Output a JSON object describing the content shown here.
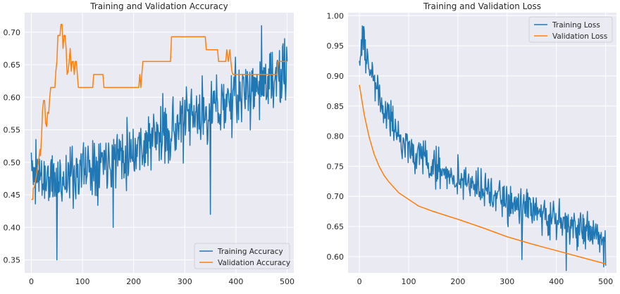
{
  "chart_data": [
    {
      "type": "line",
      "title": "Training and Validation Accuracy",
      "xlabel": "",
      "ylabel": "",
      "xlim": [
        -13,
        513
      ],
      "ylim": [
        0.33,
        0.73
      ],
      "xticks": [
        0,
        100,
        200,
        300,
        400,
        500
      ],
      "yticks": [
        0.35,
        0.4,
        0.45,
        0.5,
        0.55,
        0.6,
        0.65,
        0.7
      ],
      "ytick_labels": [
        "0.35",
        "0.40",
        "0.45",
        "0.50",
        "0.55",
        "0.60",
        "0.65",
        "0.70"
      ],
      "grid": true,
      "legend_position": "lower-right",
      "series": [
        {
          "name": "Training Accuracy",
          "color": "#1f77b4",
          "style": "noisy",
          "seed": 11,
          "trend_x": [
            0,
            50,
            100,
            150,
            200,
            250,
            300,
            350,
            400,
            450,
            500
          ],
          "trend_y": [
            0.48,
            0.47,
            0.49,
            0.51,
            0.52,
            0.54,
            0.56,
            0.58,
            0.6,
            0.62,
            0.63
          ],
          "noise": 0.045,
          "clip": [
            0.41,
            0.71
          ],
          "fixed": [
            [
              0,
              0.515
            ],
            [
              3,
              0.49
            ],
            [
              6,
              0.47
            ],
            [
              9,
              0.535
            ],
            [
              13,
              0.47
            ],
            [
              16,
              0.505
            ],
            [
              50,
              0.35
            ],
            [
              160,
              0.4
            ],
            [
              350,
              0.42
            ],
            [
              450,
              0.71
            ],
            [
              495,
              0.69
            ],
            [
              500,
              0.655
            ]
          ]
        },
        {
          "name": "Validation Accuracy",
          "color": "#ff7f0e",
          "style": "line",
          "x": [
            0,
            3,
            4,
            6,
            10,
            12,
            14,
            17,
            18,
            20,
            22,
            24,
            26,
            28,
            30,
            32,
            34,
            36,
            38,
            40,
            42,
            44,
            46,
            48,
            50,
            52,
            54,
            56,
            58,
            60,
            62,
            64,
            66,
            68,
            70,
            72,
            74,
            76,
            78,
            80,
            82,
            84,
            86,
            88,
            90,
            92,
            94,
            96,
            98,
            100,
            120,
            122,
            140,
            142,
            210,
            212,
            214,
            216,
            218,
            272,
            274,
            340,
            342,
            364,
            366,
            380,
            382,
            385,
            388,
            390,
            392,
            394,
            400,
            480,
            482,
            500
          ],
          "y": [
            0.443,
            0.443,
            0.46,
            0.462,
            0.48,
            0.49,
            0.5,
            0.52,
            0.51,
            0.54,
            0.58,
            0.595,
            0.595,
            0.56,
            0.555,
            0.577,
            0.575,
            0.6,
            0.615,
            0.615,
            0.615,
            0.615,
            0.615,
            0.64,
            0.655,
            0.695,
            0.695,
            0.695,
            0.712,
            0.712,
            0.675,
            0.695,
            0.695,
            0.675,
            0.635,
            0.64,
            0.655,
            0.675,
            0.64,
            0.655,
            0.655,
            0.635,
            0.655,
            0.655,
            0.635,
            0.615,
            0.615,
            0.615,
            0.615,
            0.615,
            0.615,
            0.635,
            0.635,
            0.615,
            0.615,
            0.635,
            0.615,
            0.635,
            0.655,
            0.655,
            0.693,
            0.693,
            0.673,
            0.673,
            0.655,
            0.655,
            0.673,
            0.655,
            0.673,
            0.655,
            0.64,
            0.635,
            0.635,
            0.635,
            0.655,
            0.655
          ]
        }
      ]
    },
    {
      "type": "line",
      "title": "Training and Validation Loss",
      "xlabel": "",
      "ylabel": "",
      "xlim": [
        -23,
        522
      ],
      "ylim": [
        0.573,
        1.005
      ],
      "xticks": [
        0,
        100,
        200,
        300,
        400,
        500
      ],
      "yticks": [
        0.6,
        0.65,
        0.7,
        0.75,
        0.8,
        0.85,
        0.9,
        0.95,
        1.0
      ],
      "ytick_labels": [
        "0.60",
        "0.65",
        "0.70",
        "0.75",
        "0.80",
        "0.85",
        "0.90",
        "0.95",
        "1.00"
      ],
      "grid": true,
      "legend_position": "top-right",
      "series": [
        {
          "name": "Training Loss",
          "color": "#1f77b4",
          "style": "noisy",
          "seed": 29,
          "trend_x": [
            0,
            5,
            20,
            50,
            80,
            100,
            150,
            200,
            250,
            300,
            350,
            400,
            450,
            500
          ],
          "trend_y": [
            0.94,
            0.96,
            0.92,
            0.84,
            0.8,
            0.78,
            0.75,
            0.73,
            0.71,
            0.69,
            0.675,
            0.665,
            0.645,
            0.63
          ],
          "noise": 0.03,
          "clip": [
            0.575,
            0.99
          ],
          "fixed": [
            [
              0,
              0.925
            ],
            [
              4,
              0.96
            ],
            [
              6,
              0.983
            ],
            [
              10,
              0.975
            ],
            [
              12,
              0.96
            ],
            [
              330,
              0.595
            ],
            [
              420,
              0.577
            ],
            [
              496,
              0.583
            ],
            [
              500,
              0.585
            ]
          ]
        },
        {
          "name": "Validation Loss",
          "color": "#ff7f0e",
          "style": "line",
          "x": [
            0,
            10,
            20,
            30,
            40,
            50,
            60,
            70,
            80,
            100,
            120,
            150,
            200,
            250,
            300,
            350,
            400,
            450,
            500
          ],
          "y": [
            0.885,
            0.835,
            0.798,
            0.77,
            0.75,
            0.735,
            0.724,
            0.715,
            0.706,
            0.695,
            0.684,
            0.675,
            0.662,
            0.648,
            0.633,
            0.621,
            0.61,
            0.599,
            0.588
          ]
        }
      ]
    }
  ]
}
